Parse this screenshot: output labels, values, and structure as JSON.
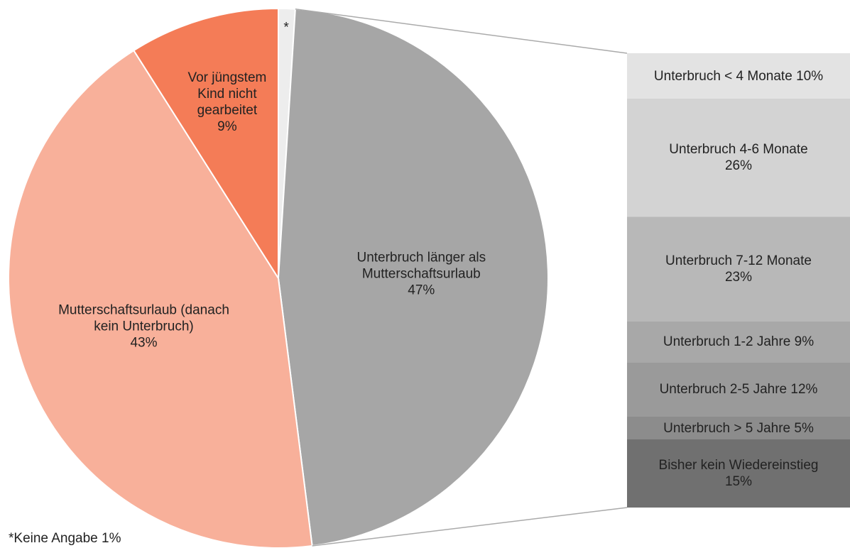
{
  "chart_data": [
    {
      "type": "pie",
      "categories": [
        "*",
        "Unterbruch länger als Mutterschaftsurlaub",
        "Mutterschaftsurlaub (danach kein Unterbruch)",
        "Vor jüngstem Kind nicht gearbeitet"
      ],
      "values": [
        1,
        47,
        43,
        9
      ],
      "value_labels": [
        null,
        "47%",
        "43%",
        "9%"
      ],
      "colors": [
        "#ededed",
        "#a6a6a6",
        "#f8b09a",
        "#f47c57"
      ],
      "footnote": "*Keine Angabe 1%"
    },
    {
      "type": "stacked-bar",
      "categories": [
        "Unterbruch < 4 Monate",
        "Unterbruch 4-6 Monate",
        "Unterbruch 7-12 Monate",
        "Unterbruch 1-2 Jahre",
        "Unterbruch 2-5 Jahre",
        "Unterbruch > 5 Jahre",
        "Bisher kein Wiedereinstieg"
      ],
      "values": [
        10,
        26,
        23,
        9,
        12,
        5,
        15
      ],
      "value_labels": [
        "10%",
        "26%",
        "23%",
        "9%",
        "12%",
        "5%",
        "15%"
      ],
      "colors": [
        "#e3e3e3",
        "#d3d3d3",
        "#b8b8b8",
        "#a8a8a8",
        "#9a9a9a",
        "#8c8c8c",
        "#707070"
      ]
    }
  ]
}
